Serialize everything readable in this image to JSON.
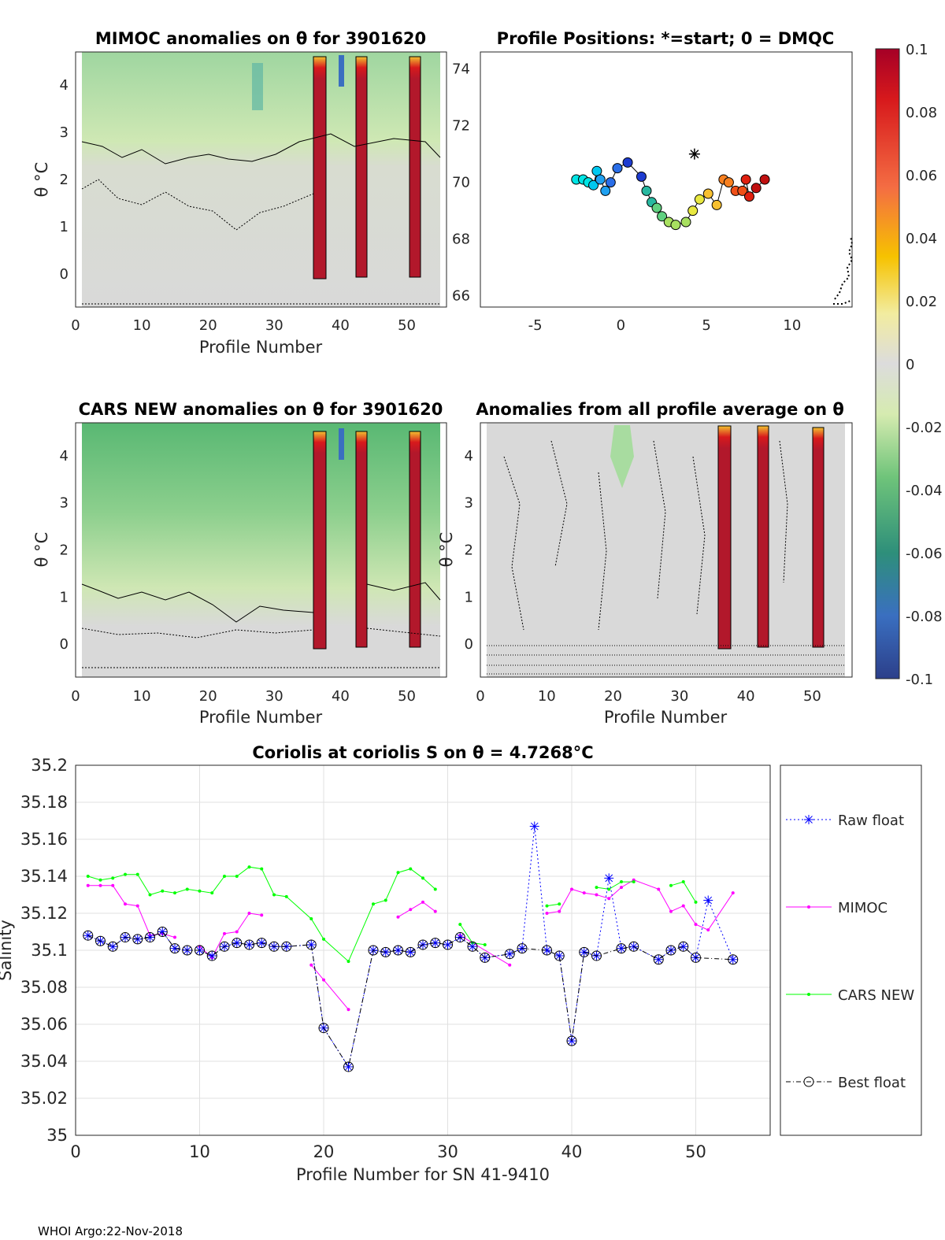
{
  "footer": "WHOI Argo:22-Nov-2018",
  "panels": {
    "mimoc": {
      "title": "MIMOC anomalies on θ  for 3901620",
      "xlabel": "Profile Number",
      "ylabel": "θ °C",
      "xticks": [
        "0",
        "10",
        "20",
        "30",
        "40",
        "50"
      ],
      "yticks": [
        "0",
        "1",
        "2",
        "3",
        "4"
      ]
    },
    "positions": {
      "title": "Profile Positions: *=start; 0 = DMQC",
      "xticks": [
        "-5",
        "0",
        "5",
        "10"
      ],
      "yticks": [
        "66",
        "68",
        "70",
        "72",
        "74"
      ]
    },
    "cars": {
      "title": "CARS NEW anomalies on θ for 3901620",
      "xlabel": "Profile Number",
      "ylabel": "θ °C",
      "xticks": [
        "0",
        "10",
        "20",
        "30",
        "40",
        "50"
      ],
      "yticks": [
        "0",
        "1",
        "2",
        "3",
        "4"
      ]
    },
    "allavg": {
      "title": "Anomalies from all profile average on θ",
      "xlabel": "Profile Number",
      "ylabel": "θ °C",
      "xticks": [
        "0",
        "10",
        "20",
        "30",
        "40",
        "50"
      ],
      "yticks": [
        "0",
        "1",
        "2",
        "3",
        "4"
      ]
    }
  },
  "colorbar": {
    "ticks": [
      "0.1",
      "0.08",
      "0.06",
      "0.04",
      "0.02",
      "0",
      "-0.02",
      "-0.04",
      "-0.06",
      "-0.08",
      "-0.1"
    ]
  },
  "colors": {
    "raw": "#0000ff",
    "mimoc": "#ff00ff",
    "cars": "#00ff00",
    "best": "#000000"
  },
  "chart_data": {
    "type": "line",
    "title": "Coriolis at coriolis S on θ = 4.7268°C",
    "xlabel": "Profile Number for SN 41-9410",
    "ylabel": "Salinity",
    "xlim": [
      0,
      56
    ],
    "ylim": [
      35,
      35.2
    ],
    "xticks": [
      "0",
      "10",
      "20",
      "30",
      "40",
      "50"
    ],
    "yticks": [
      "35",
      "35.02",
      "35.04",
      "35.06",
      "35.08",
      "35.1",
      "35.12",
      "35.14",
      "35.16",
      "35.18",
      "35.2"
    ],
    "legend": [
      "Raw float",
      "MIMOC",
      "CARS NEW",
      "Best float"
    ],
    "series": [
      {
        "name": "Raw float",
        "x": [
          1,
          2,
          3,
          4,
          5,
          6,
          7,
          8,
          9,
          10,
          11,
          12,
          13,
          14,
          15,
          16,
          17,
          19,
          20,
          22,
          24,
          25,
          26,
          27,
          28,
          29,
          30,
          31,
          32,
          33,
          35,
          36,
          37,
          38,
          39,
          40,
          41,
          42,
          43,
          44,
          45,
          47,
          48,
          49,
          50,
          51,
          53
        ],
        "values": [
          35.108,
          35.105,
          35.102,
          35.107,
          35.106,
          35.107,
          35.11,
          35.101,
          35.1,
          35.1,
          35.097,
          35.102,
          35.104,
          35.103,
          35.104,
          35.102,
          35.102,
          35.103,
          35.058,
          35.037,
          35.1,
          35.099,
          35.1,
          35.099,
          35.103,
          35.104,
          35.103,
          35.107,
          35.102,
          35.096,
          35.098,
          35.101,
          35.167,
          35.1,
          35.097,
          35.051,
          35.099,
          35.097,
          35.139,
          35.101,
          35.102,
          35.095,
          35.1,
          35.102,
          35.096,
          35.127,
          35.095
        ]
      },
      {
        "name": "MIMOC",
        "segments": [
          {
            "x": [
              1,
              2,
              3,
              4,
              5,
              6,
              7,
              8
            ],
            "values": [
              35.135,
              35.135,
              35.135,
              35.125,
              35.124,
              35.108,
              35.109,
              35.107
            ]
          },
          {
            "x": [
              10,
              11,
              12,
              13,
              14,
              15
            ],
            "values": [
              35.102,
              35.096,
              35.109,
              35.11,
              35.12,
              35.119
            ]
          },
          {
            "x": [
              19,
              20,
              22
            ],
            "values": [
              35.092,
              35.084,
              35.068
            ]
          },
          {
            "x": [
              26,
              27,
              28,
              29
            ],
            "values": [
              35.118,
              35.122,
              35.126,
              35.121
            ]
          },
          {
            "x": [
              31,
              35
            ],
            "values": [
              35.108,
              35.092
            ]
          },
          {
            "x": [
              38,
              39,
              40,
              41,
              42,
              43,
              44,
              45,
              47,
              48,
              49,
              50,
              51,
              53
            ],
            "values": [
              35.12,
              35.121,
              35.133,
              35.131,
              35.13,
              35.128,
              35.134,
              35.138,
              35.133,
              35.121,
              35.124,
              35.114,
              35.111,
              35.131
            ]
          }
        ]
      },
      {
        "name": "CARS NEW",
        "segments": [
          {
            "x": [
              1,
              2,
              3,
              4,
              5,
              6,
              7,
              8,
              9,
              10,
              11,
              12,
              13,
              14,
              15,
              16,
              17,
              19,
              20,
              22,
              24,
              25,
              26,
              27,
              28,
              29
            ],
            "values": [
              35.14,
              35.138,
              35.139,
              35.141,
              35.141,
              35.13,
              35.132,
              35.131,
              35.133,
              35.132,
              35.131,
              35.14,
              35.14,
              35.145,
              35.144,
              35.13,
              35.129,
              35.117,
              35.106,
              35.094,
              35.125,
              35.127,
              35.142,
              35.144,
              35.139,
              35.133
            ]
          },
          {
            "x": [
              31,
              32,
              33
            ],
            "values": [
              35.114,
              35.104,
              35.103
            ]
          },
          {
            "x": [
              38,
              39
            ],
            "values": [
              35.124,
              35.125
            ]
          },
          {
            "x": [
              42,
              43,
              44,
              45
            ],
            "values": [
              35.134,
              35.133,
              35.137,
              35.137
            ]
          },
          {
            "x": [
              48,
              49,
              50
            ],
            "values": [
              35.135,
              35.137,
              35.126
            ]
          }
        ]
      },
      {
        "name": "Best float",
        "x": [
          1,
          2,
          3,
          4,
          5,
          6,
          7,
          8,
          9,
          10,
          11,
          12,
          13,
          14,
          15,
          16,
          17,
          19,
          20,
          22,
          24,
          25,
          26,
          27,
          28,
          29,
          30,
          31,
          32,
          33,
          35,
          36,
          38,
          39,
          40,
          41,
          42,
          44,
          45,
          47,
          48,
          49,
          50,
          53
        ],
        "values": [
          35.108,
          35.105,
          35.102,
          35.107,
          35.106,
          35.107,
          35.11,
          35.101,
          35.1,
          35.1,
          35.097,
          35.102,
          35.104,
          35.103,
          35.104,
          35.102,
          35.102,
          35.103,
          35.058,
          35.037,
          35.1,
          35.099,
          35.1,
          35.099,
          35.103,
          35.104,
          35.103,
          35.107,
          35.102,
          35.096,
          35.098,
          35.101,
          35.1,
          35.097,
          35.051,
          35.099,
          35.097,
          35.101,
          35.102,
          35.095,
          35.1,
          35.102,
          35.096,
          35.095
        ]
      }
    ]
  },
  "positions_data": {
    "lon": [
      -2.6,
      -2.2,
      -1.9,
      -1.6,
      -1.4,
      -1.2,
      -0.9,
      -0.6,
      -0.2,
      0.4,
      1.2,
      1.5,
      1.8,
      2.1,
      2.4,
      2.8,
      3.2,
      3.8,
      4.2,
      4.6,
      5.1,
      5.6,
      6.0,
      6.3,
      6.7,
      7.1,
      7.3,
      7.5,
      7.9,
      8.4
    ],
    "lat": [
      70.1,
      70.1,
      70.0,
      69.9,
      70.4,
      70.1,
      69.7,
      70.0,
      70.5,
      70.7,
      70.2,
      69.7,
      69.3,
      69.1,
      68.8,
      68.6,
      68.5,
      68.6,
      69.0,
      69.4,
      69.6,
      69.2,
      70.1,
      70.0,
      69.7,
      69.7,
      70.1,
      69.5,
      69.8,
      70.1
    ],
    "start": {
      "lon": 4.3,
      "lat": 71.0
    }
  }
}
